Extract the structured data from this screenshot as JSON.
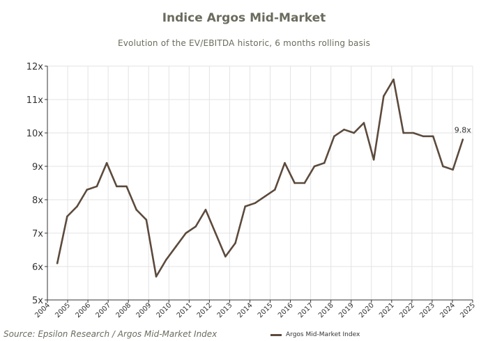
{
  "chart_data": {
    "type": "line",
    "title": "Indice Argos Mid-Market",
    "subtitle": "Evolution of the EV/EBITDA historic, 6 months rolling basis",
    "source": "Source: Epsilon Research / Argos Mid-Market Index",
    "xlabel": "",
    "ylabel": "",
    "x_ticks": [
      "2004",
      "2005",
      "2006",
      "2007",
      "2008",
      "2009",
      "2010",
      "2011",
      "2012",
      "2013",
      "2014",
      "2015",
      "2016",
      "2017",
      "2018",
      "2019",
      "2020",
      "2021",
      "2022",
      "2023",
      "2024",
      "2025"
    ],
    "xlim": [
      2004.0,
      2025.5
    ],
    "y_ticks": [
      "5x",
      "6x",
      "7x",
      "8x",
      "9x",
      "10x",
      "11x",
      "12x"
    ],
    "ylim": [
      5,
      12
    ],
    "grid": true,
    "legend_position": "bottom",
    "series": [
      {
        "name": "Argos Mid-Market Index",
        "color": "#5c4a3c",
        "x": [
          2004.5,
          2005.0,
          2005.5,
          2006.0,
          2006.5,
          2007.0,
          2007.5,
          2008.0,
          2008.5,
          2009.0,
          2009.5,
          2010.0,
          2010.5,
          2011.0,
          2011.5,
          2012.0,
          2012.5,
          2013.0,
          2013.5,
          2014.0,
          2014.5,
          2015.0,
          2015.5,
          2016.0,
          2016.5,
          2017.0,
          2017.5,
          2018.0,
          2018.5,
          2019.0,
          2019.5,
          2020.0,
          2020.5,
          2021.0,
          2021.5,
          2022.0,
          2022.5,
          2023.0,
          2023.5,
          2024.0,
          2024.5,
          2025.0
        ],
        "values": [
          6.1,
          7.5,
          7.8,
          8.3,
          8.4,
          9.1,
          8.4,
          8.4,
          7.7,
          7.4,
          5.7,
          6.2,
          6.6,
          7.0,
          7.2,
          7.7,
          7.0,
          6.3,
          6.7,
          7.8,
          7.9,
          8.1,
          8.3,
          9.1,
          8.5,
          8.5,
          9.0,
          9.1,
          9.9,
          10.1,
          10.0,
          10.3,
          9.2,
          11.1,
          11.6,
          10.0,
          10.0,
          9.9,
          9.9,
          9.0,
          8.9,
          9.8
        ]
      }
    ],
    "annotations": [
      {
        "text": "9.8x",
        "x": 2025.0,
        "y": 9.8
      }
    ]
  }
}
